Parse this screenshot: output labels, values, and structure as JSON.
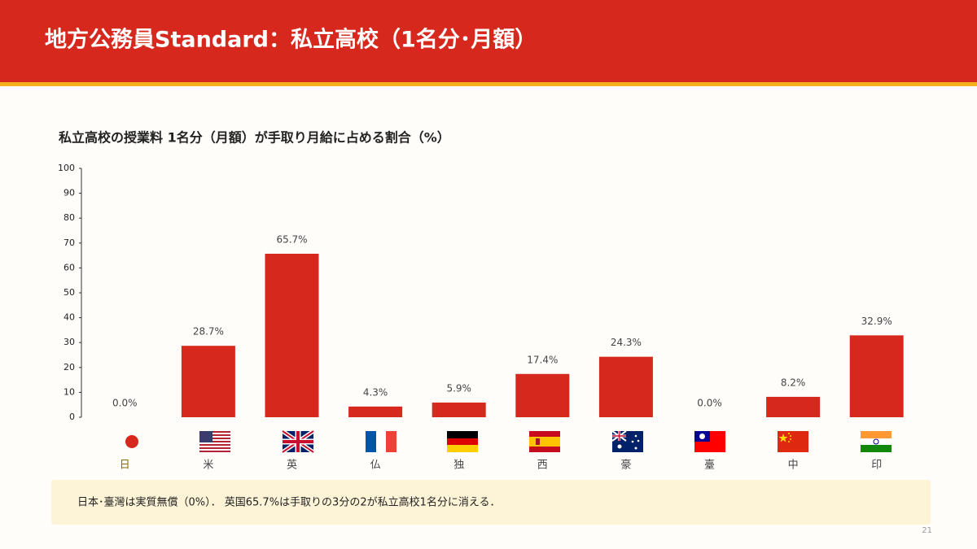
{
  "header": {
    "title": "地方公務員Standard：私立高校（1名分･月額）"
  },
  "chart_data": {
    "type": "bar",
    "title": "私立高校の授業料 1名分（月額）が手取り月給に占める割合（%）",
    "categories": [
      "日",
      "米",
      "英",
      "仏",
      "独",
      "西",
      "豪",
      "臺",
      "中",
      "印"
    ],
    "values": [
      0,
      28.7,
      65.7,
      4.3,
      5.9,
      17.4,
      24.3,
      0,
      8.2,
      32.9
    ],
    "value_labels": [
      "0.0%",
      "28.7%",
      "65.7%",
      "4.3%",
      "5.9%",
      "17.4%",
      "24.3%",
      "0.0%",
      "8.2%",
      "32.9%"
    ],
    "color": "#d7281e",
    "ylim": [
      0,
      100
    ],
    "yticks": [
      0,
      10,
      20,
      30,
      40,
      50,
      60,
      70,
      80,
      90,
      100
    ]
  },
  "note": "日本･臺灣は実質無償（0%）． 英国65.7%は手取りの3分の2が私立高校1名分に消える．",
  "page_number": "21"
}
